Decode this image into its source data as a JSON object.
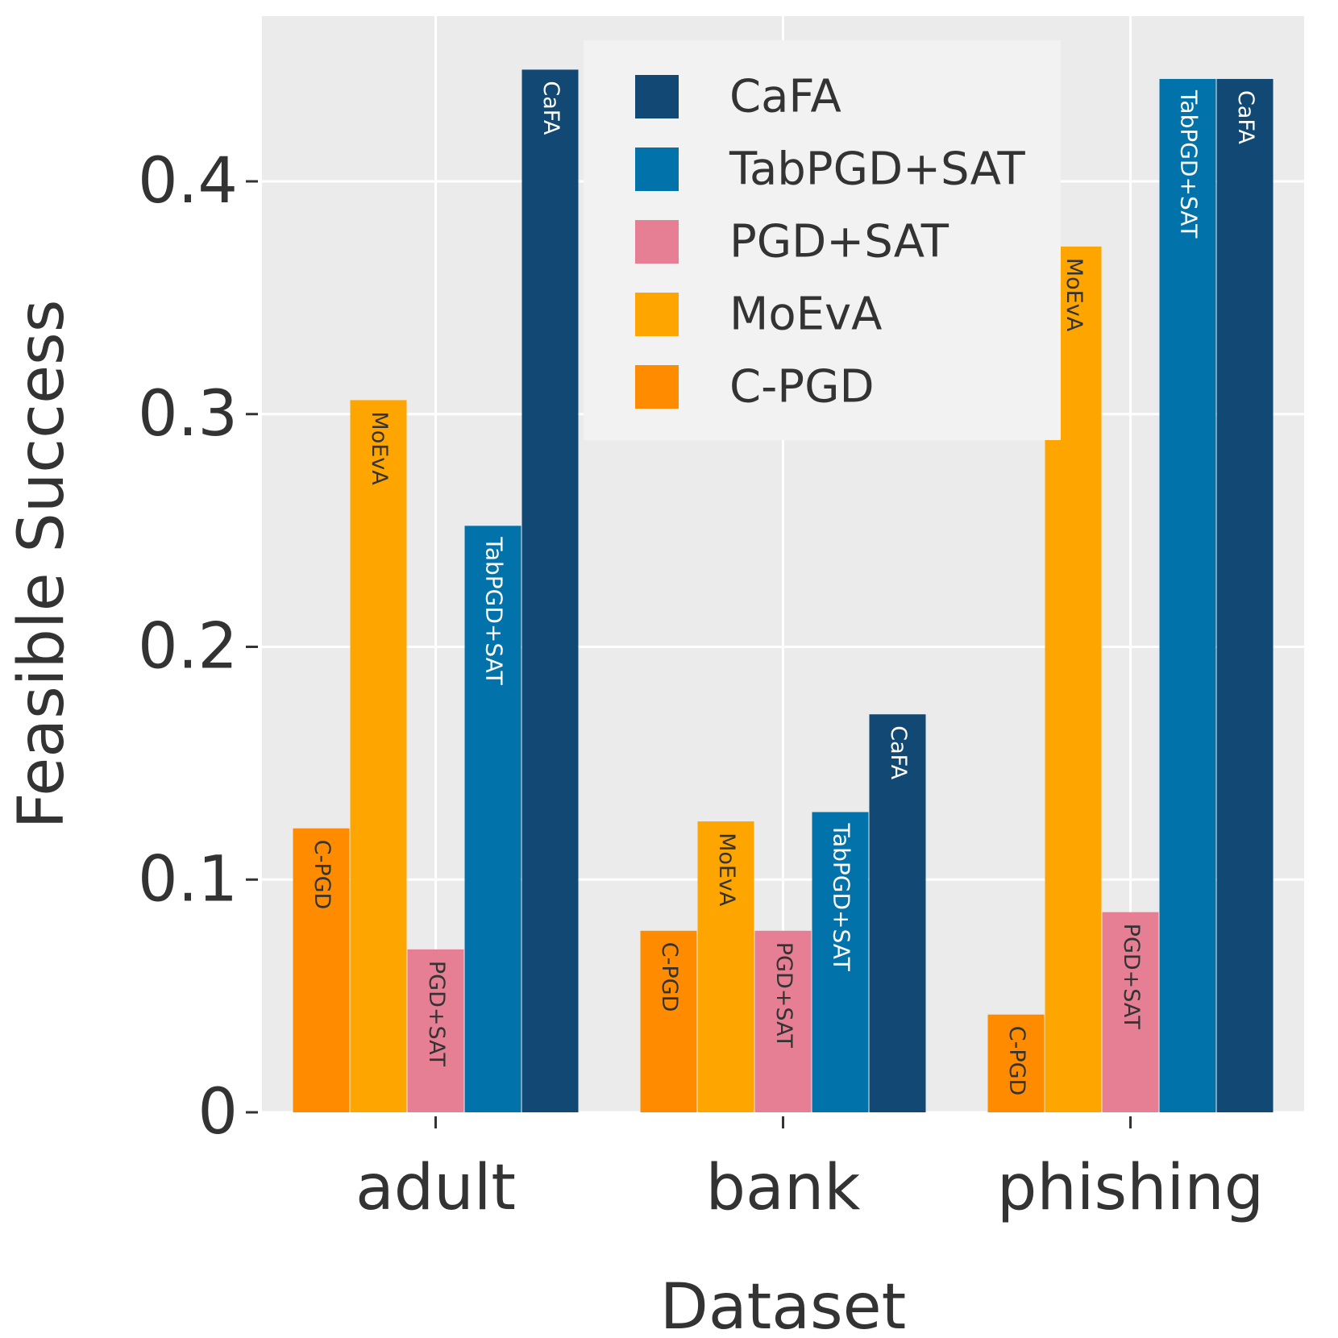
{
  "chart_data": {
    "type": "bar",
    "title": "",
    "xlabel": "Dataset",
    "ylabel": "Feasible Success",
    "categories": [
      "adult",
      "bank",
      "phishing"
    ],
    "ylim": [
      0,
      0.45
    ],
    "yticks": [
      0,
      0.1,
      0.2,
      0.3,
      0.4
    ],
    "ytick_labels": [
      "0",
      "0.1",
      "0.2",
      "0.3",
      "0.4"
    ],
    "grid": true,
    "legend_position": "top-center",
    "legend_order": [
      "CaFA",
      "TabPGD+SAT",
      "PGD+SAT",
      "MoEvA",
      "C-PGD"
    ],
    "series": [
      {
        "name": "C-PGD",
        "color": "#FF8C00",
        "label_color": "#333333",
        "values": [
          0.122,
          0.078,
          0.042
        ]
      },
      {
        "name": "MoEvA",
        "color": "#FFA500",
        "label_color": "#333333",
        "values": [
          0.306,
          0.125,
          0.372
        ]
      },
      {
        "name": "PGD+SAT",
        "color": "#E77F94",
        "label_color": "#333333",
        "values": [
          0.07,
          0.078,
          0.086
        ]
      },
      {
        "name": "TabPGD+SAT",
        "color": "#0173AA",
        "label_color": "#ffffff",
        "values": [
          0.252,
          0.129,
          0.444
        ]
      },
      {
        "name": "CaFA",
        "color": "#114874",
        "label_color": "#ffffff",
        "values": [
          0.448,
          0.171,
          0.444
        ]
      }
    ]
  }
}
